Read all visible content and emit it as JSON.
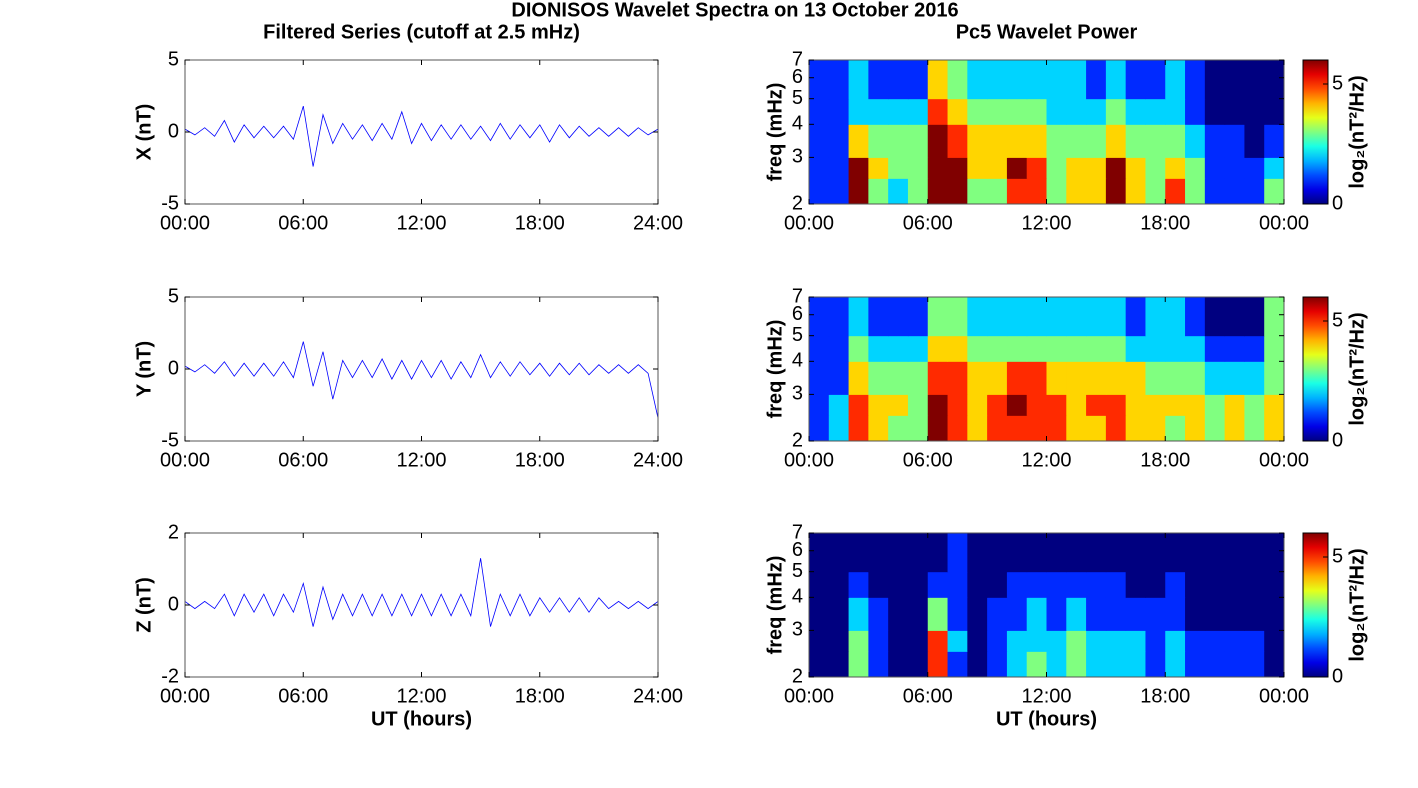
{
  "title": "DIONISOS Wavelet Spectra on 13 October 2016",
  "chart_data": [
    {
      "type": "line",
      "title": "Filtered Series (cutoff at 2.5 mHz)",
      "ylabel": "X (nT)",
      "color": "#0000ff",
      "x": [
        0,
        0.5,
        1,
        1.5,
        2,
        2.5,
        3,
        3.5,
        4,
        4.5,
        5,
        5.5,
        6,
        6.5,
        7,
        7.5,
        8,
        8.5,
        9,
        9.5,
        10,
        10.5,
        11,
        11.5,
        12,
        12.5,
        13,
        13.5,
        14,
        14.5,
        15,
        15.5,
        16,
        16.5,
        17,
        17.5,
        18,
        18.5,
        19,
        19.5,
        20,
        20.5,
        21,
        21.5,
        22,
        22.5,
        23,
        23.5,
        24
      ],
      "values": [
        0.2,
        -0.2,
        0.3,
        -0.3,
        0.8,
        -0.7,
        0.5,
        -0.4,
        0.4,
        -0.4,
        0.4,
        -0.5,
        1.8,
        -2.4,
        1.2,
        -0.8,
        0.6,
        -0.5,
        0.5,
        -0.6,
        0.6,
        -0.5,
        1.4,
        -0.8,
        0.6,
        -0.6,
        0.5,
        -0.5,
        0.5,
        -0.5,
        0.4,
        -0.6,
        0.6,
        -0.5,
        0.5,
        -0.4,
        0.5,
        -0.7,
        0.5,
        -0.4,
        0.4,
        -0.3,
        0.3,
        -0.3,
        0.3,
        -0.3,
        0.3,
        -0.2,
        0.2
      ],
      "xlim": [
        0,
        24
      ],
      "xticks": [
        {
          "value": 0,
          "label": "00:00"
        },
        {
          "value": 6,
          "label": "06:00"
        },
        {
          "value": 12,
          "label": "12:00"
        },
        {
          "value": 18,
          "label": "18:00"
        },
        {
          "value": 24,
          "label": "24:00"
        }
      ],
      "ylim": [
        -5,
        5
      ],
      "yticks": [
        -5,
        0,
        5
      ]
    },
    {
      "type": "line",
      "ylabel": "Y (nT)",
      "color": "#0000ff",
      "x": [
        0,
        0.5,
        1,
        1.5,
        2,
        2.5,
        3,
        3.5,
        4,
        4.5,
        5,
        5.5,
        6,
        6.5,
        7,
        7.5,
        8,
        8.5,
        9,
        9.5,
        10,
        10.5,
        11,
        11.5,
        12,
        12.5,
        13,
        13.5,
        14,
        14.5,
        15,
        15.5,
        16,
        16.5,
        17,
        17.5,
        18,
        18.5,
        19,
        19.5,
        20,
        20.5,
        21,
        21.5,
        22,
        22.5,
        23,
        23.5,
        24
      ],
      "values": [
        0.2,
        -0.2,
        0.3,
        -0.3,
        0.5,
        -0.5,
        0.4,
        -0.5,
        0.4,
        -0.5,
        0.5,
        -0.6,
        1.9,
        -1.2,
        1.2,
        -2.1,
        0.6,
        -0.6,
        0.6,
        -0.6,
        0.7,
        -0.7,
        0.6,
        -0.7,
        0.6,
        -0.6,
        0.6,
        -0.7,
        0.5,
        -0.6,
        1.0,
        -0.6,
        0.5,
        -0.5,
        0.5,
        -0.4,
        0.4,
        -0.5,
        0.4,
        -0.4,
        0.4,
        -0.4,
        0.3,
        -0.3,
        0.3,
        -0.3,
        0.3,
        -0.3,
        -3.4
      ],
      "xlim": [
        0,
        24
      ],
      "xticks": [
        {
          "value": 0,
          "label": "00:00"
        },
        {
          "value": 6,
          "label": "06:00"
        },
        {
          "value": 12,
          "label": "12:00"
        },
        {
          "value": 18,
          "label": "18:00"
        },
        {
          "value": 24,
          "label": "24:00"
        }
      ],
      "ylim": [
        -5,
        5
      ],
      "yticks": [
        -5,
        0,
        5
      ]
    },
    {
      "type": "line",
      "ylabel": "Z (nT)",
      "xlabel": "UT (hours)",
      "color": "#0000ff",
      "x": [
        0,
        0.5,
        1,
        1.5,
        2,
        2.5,
        3,
        3.5,
        4,
        4.5,
        5,
        5.5,
        6,
        6.5,
        7,
        7.5,
        8,
        8.5,
        9,
        9.5,
        10,
        10.5,
        11,
        11.5,
        12,
        12.5,
        13,
        13.5,
        14,
        14.5,
        15,
        15.5,
        16,
        16.5,
        17,
        17.5,
        18,
        18.5,
        19,
        19.5,
        20,
        20.5,
        21,
        21.5,
        22,
        22.5,
        23,
        23.5,
        24
      ],
      "values": [
        0.1,
        -0.1,
        0.1,
        -0.1,
        0.3,
        -0.3,
        0.3,
        -0.2,
        0.3,
        -0.3,
        0.3,
        -0.2,
        0.6,
        -0.6,
        0.5,
        -0.4,
        0.3,
        -0.3,
        0.3,
        -0.3,
        0.3,
        -0.3,
        0.3,
        -0.3,
        0.3,
        -0.3,
        0.3,
        -0.3,
        0.3,
        -0.3,
        1.3,
        -0.6,
        0.3,
        -0.3,
        0.3,
        -0.3,
        0.2,
        -0.2,
        0.2,
        -0.2,
        0.2,
        -0.2,
        0.2,
        -0.1,
        0.1,
        -0.1,
        0.1,
        -0.1,
        0.1
      ],
      "xlim": [
        0,
        24
      ],
      "xticks": [
        {
          "value": 0,
          "label": "00:00"
        },
        {
          "value": 6,
          "label": "06:00"
        },
        {
          "value": 12,
          "label": "12:00"
        },
        {
          "value": 18,
          "label": "18:00"
        },
        {
          "value": 24,
          "label": "24:00"
        }
      ],
      "ylim": [
        -2,
        2
      ],
      "yticks": [
        -2,
        0,
        2
      ]
    },
    {
      "type": "heatmap",
      "title": "Pc5 Wavelet Power",
      "ylabel": "freq (mHz)",
      "colormap": "jet",
      "log_y": true,
      "x_edges": [
        0,
        1,
        2,
        3,
        4,
        5,
        6,
        7,
        8,
        9,
        10,
        11,
        12,
        13,
        14,
        15,
        16,
        17,
        18,
        19,
        20,
        21,
        22,
        23,
        24
      ],
      "y_edges": [
        2,
        2.5,
        3,
        4,
        5,
        7
      ],
      "z": [
        [
          1,
          1,
          6,
          3,
          2,
          3,
          6,
          6,
          3,
          3,
          5,
          5,
          3,
          4,
          4,
          6,
          4,
          3,
          5,
          3,
          1,
          1,
          1,
          3
        ],
        [
          1,
          1,
          6,
          4,
          3,
          3,
          6,
          6,
          4,
          4,
          6,
          5,
          3,
          4,
          4,
          6,
          4,
          3,
          4,
          3,
          1,
          1,
          1,
          2
        ],
        [
          1,
          1,
          4,
          3,
          3,
          3,
          6,
          5,
          4,
          4,
          4,
          4,
          3,
          3,
          3,
          4,
          3,
          3,
          3,
          2,
          1,
          1,
          0,
          1
        ],
        [
          1,
          1,
          2,
          2,
          2,
          2,
          5,
          4,
          3,
          3,
          3,
          3,
          2,
          2,
          2,
          3,
          2,
          2,
          2,
          1,
          0,
          0,
          0,
          0
        ],
        [
          1,
          1,
          2,
          1,
          1,
          1,
          4,
          3,
          2,
          2,
          2,
          2,
          2,
          2,
          1,
          2,
          1,
          1,
          2,
          1,
          0,
          0,
          0,
          0
        ]
      ],
      "xlim": [
        0,
        24
      ],
      "xticks": [
        {
          "value": 0,
          "label": "00:00"
        },
        {
          "value": 6,
          "label": "06:00"
        },
        {
          "value": 12,
          "label": "12:00"
        },
        {
          "value": 18,
          "label": "18:00"
        },
        {
          "value": 24,
          "label": "00:00"
        }
      ],
      "ylim": [
        2,
        7
      ],
      "yticks": [
        2,
        3,
        4,
        5,
        6,
        7
      ],
      "colorbar": {
        "label": "log₂(nT²/Hz)",
        "lim": [
          0,
          6
        ],
        "ticks": [
          0,
          5
        ]
      }
    },
    {
      "type": "heatmap",
      "ylabel": "freq (mHz)",
      "colormap": "jet",
      "log_y": true,
      "x_edges": [
        0,
        1,
        2,
        3,
        4,
        5,
        6,
        7,
        8,
        9,
        10,
        11,
        12,
        13,
        14,
        15,
        16,
        17,
        18,
        19,
        20,
        21,
        22,
        23,
        24
      ],
      "y_edges": [
        2,
        2.5,
        3,
        4,
        5,
        7
      ],
      "z": [
        [
          1,
          2,
          5,
          4,
          3,
          3,
          6,
          5,
          4,
          5,
          5,
          5,
          5,
          4,
          4,
          5,
          4,
          4,
          3,
          4,
          3,
          4,
          3,
          4
        ],
        [
          1,
          2,
          5,
          4,
          4,
          3,
          6,
          5,
          4,
          5,
          6,
          5,
          5,
          4,
          5,
          5,
          4,
          4,
          4,
          4,
          3,
          4,
          3,
          4
        ],
        [
          1,
          1,
          4,
          3,
          3,
          3,
          5,
          5,
          4,
          4,
          5,
          5,
          4,
          4,
          4,
          4,
          4,
          3,
          3,
          3,
          2,
          2,
          2,
          3
        ],
        [
          1,
          1,
          3,
          2,
          2,
          2,
          4,
          4,
          3,
          3,
          3,
          3,
          3,
          3,
          3,
          3,
          2,
          2,
          2,
          2,
          1,
          1,
          1,
          3
        ],
        [
          1,
          1,
          2,
          1,
          1,
          1,
          3,
          3,
          2,
          2,
          2,
          2,
          2,
          2,
          2,
          2,
          1,
          2,
          2,
          1,
          0,
          0,
          0,
          3
        ]
      ],
      "xlim": [
        0,
        24
      ],
      "xticks": [
        {
          "value": 0,
          "label": "00:00"
        },
        {
          "value": 6,
          "label": "06:00"
        },
        {
          "value": 12,
          "label": "12:00"
        },
        {
          "value": 18,
          "label": "18:00"
        },
        {
          "value": 24,
          "label": "00:00"
        }
      ],
      "ylim": [
        2,
        7
      ],
      "yticks": [
        2,
        3,
        4,
        5,
        6,
        7
      ],
      "colorbar": {
        "label": "log₂(nT²/Hz)",
        "lim": [
          0,
          6
        ],
        "ticks": [
          0,
          5
        ]
      }
    },
    {
      "type": "heatmap",
      "ylabel": "freq (mHz)",
      "xlabel": "UT (hours)",
      "colormap": "jet",
      "log_y": true,
      "x_edges": [
        0,
        1,
        2,
        3,
        4,
        5,
        6,
        7,
        8,
        9,
        10,
        11,
        12,
        13,
        14,
        15,
        16,
        17,
        18,
        19,
        20,
        21,
        22,
        23,
        24
      ],
      "y_edges": [
        2,
        2.5,
        3,
        4,
        5,
        7
      ],
      "z": [
        [
          0,
          0,
          3,
          1,
          0,
          0,
          5,
          1,
          0,
          1,
          2,
          3,
          2,
          3,
          2,
          2,
          2,
          1,
          2,
          1,
          1,
          1,
          1,
          0
        ],
        [
          0,
          0,
          3,
          1,
          0,
          0,
          5,
          2,
          0,
          1,
          2,
          2,
          2,
          3,
          2,
          2,
          2,
          1,
          2,
          1,
          1,
          1,
          1,
          0
        ],
        [
          0,
          0,
          2,
          1,
          0,
          0,
          3,
          1,
          0,
          1,
          1,
          2,
          1,
          2,
          1,
          1,
          1,
          1,
          1,
          0,
          0,
          0,
          0,
          0
        ],
        [
          0,
          0,
          1,
          0,
          0,
          0,
          1,
          1,
          0,
          0,
          1,
          1,
          1,
          1,
          1,
          1,
          0,
          0,
          1,
          0,
          0,
          0,
          0,
          0
        ],
        [
          0,
          0,
          0,
          0,
          0,
          0,
          0,
          1,
          0,
          0,
          0,
          0,
          0,
          0,
          0,
          0,
          0,
          0,
          0,
          0,
          0,
          0,
          0,
          0
        ]
      ],
      "xlim": [
        0,
        24
      ],
      "xticks": [
        {
          "value": 0,
          "label": "00:00"
        },
        {
          "value": 6,
          "label": "06:00"
        },
        {
          "value": 12,
          "label": "12:00"
        },
        {
          "value": 18,
          "label": "18:00"
        },
        {
          "value": 24,
          "label": "00:00"
        }
      ],
      "ylim": [
        2,
        7
      ],
      "yticks": [
        2,
        3,
        4,
        5,
        6,
        7
      ],
      "colorbar": {
        "label": "log₂(nT²/Hz)",
        "lim": [
          0,
          6
        ],
        "ticks": [
          0,
          5
        ]
      }
    }
  ]
}
